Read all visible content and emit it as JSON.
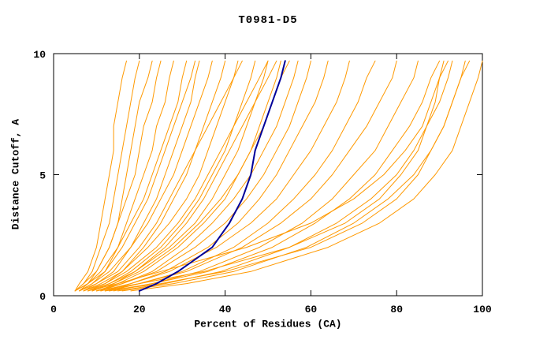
{
  "chart_data": {
    "type": "line",
    "title": "T0981-D5",
    "xlabel": "Percent of Residues (CA)",
    "ylabel": "Distance Cutoff, A",
    "xlim": [
      0,
      100
    ],
    "ylim": [
      0,
      10
    ],
    "xticks": [
      0,
      20,
      40,
      60,
      80,
      100
    ],
    "yticks": [
      0,
      5,
      10
    ],
    "grid": false,
    "legend": "none",
    "colors": {
      "models": "#ff9900",
      "highlight": "#000099",
      "axis": "#000000"
    },
    "y_grid": [
      0.2,
      0.5,
      1,
      2,
      3,
      4,
      5,
      6,
      7,
      8,
      9,
      9.7
    ],
    "series": [
      {
        "x": [
          5,
          6,
          8,
          10,
          11,
          12,
          13,
          14,
          14,
          15,
          16,
          17
        ]
      },
      {
        "x": [
          5,
          7,
          9,
          11,
          13,
          14,
          15,
          16,
          17,
          18,
          19,
          20
        ]
      },
      {
        "x": [
          6,
          8,
          10,
          13,
          15,
          16,
          17,
          18,
          19,
          20,
          22,
          23
        ]
      },
      {
        "x": [
          5,
          7,
          10,
          13,
          15,
          17,
          19,
          20,
          21,
          23,
          24,
          25
        ]
      },
      {
        "x": [
          6,
          9,
          12,
          15,
          17,
          19,
          21,
          23,
          24,
          26,
          27,
          28
        ]
      },
      {
        "x": [
          5,
          8,
          11,
          15,
          18,
          21,
          23,
          25,
          27,
          29,
          30,
          31
        ]
      },
      {
        "x": [
          7,
          10,
          14,
          18,
          21,
          24,
          26,
          28,
          30,
          32,
          33,
          34
        ]
      },
      {
        "x": [
          6,
          9,
          13,
          18,
          22,
          25,
          28,
          30,
          32,
          34,
          36,
          37
        ]
      },
      {
        "x": [
          8,
          12,
          16,
          21,
          25,
          28,
          31,
          33,
          35,
          37,
          39,
          40
        ]
      },
      {
        "x": [
          7,
          11,
          16,
          22,
          27,
          31,
          34,
          36,
          38,
          40,
          42,
          43
        ]
      },
      {
        "x": [
          9,
          13,
          18,
          25,
          30,
          34,
          37,
          40,
          42,
          44,
          46,
          47
        ]
      },
      {
        "x": [
          8,
          13,
          19,
          27,
          33,
          37,
          40,
          43,
          45,
          47,
          49,
          50
        ]
      },
      {
        "x": [
          10,
          15,
          21,
          29,
          35,
          40,
          43,
          46,
          48,
          50,
          52,
          53
        ]
      },
      {
        "x": [
          9,
          14,
          20,
          28,
          34,
          39,
          43,
          46,
          49,
          51,
          53,
          55
        ]
      },
      {
        "x": [
          11,
          16,
          23,
          31,
          37,
          42,
          46,
          49,
          52,
          54,
          56,
          57
        ]
      },
      {
        "x": [
          10,
          16,
          24,
          33,
          40,
          45,
          49,
          52,
          55,
          57,
          59,
          60
        ]
      },
      {
        "x": [
          12,
          18,
          26,
          36,
          43,
          48,
          52,
          55,
          58,
          61,
          63,
          64
        ]
      },
      {
        "x": [
          11,
          18,
          27,
          38,
          46,
          52,
          56,
          60,
          63,
          66,
          68,
          69
        ]
      },
      {
        "x": [
          13,
          20,
          30,
          42,
          50,
          56,
          61,
          65,
          68,
          71,
          73,
          75
        ]
      },
      {
        "x": [
          12,
          20,
          31,
          44,
          53,
          60,
          65,
          69,
          73,
          76,
          79,
          80
        ]
      },
      {
        "x": [
          14,
          23,
          34,
          48,
          58,
          65,
          70,
          75,
          78,
          81,
          84,
          85
        ]
      },
      {
        "x": [
          13,
          23,
          36,
          51,
          61,
          69,
          75,
          79,
          83,
          86,
          88,
          90
        ]
      },
      {
        "x": [
          15,
          26,
          39,
          55,
          66,
          74,
          80,
          84,
          87,
          90,
          92,
          93
        ]
      },
      {
        "x": [
          16,
          28,
          42,
          59,
          70,
          78,
          84,
          88,
          91,
          93,
          95,
          96
        ]
      },
      {
        "x": [
          18,
          31,
          46,
          64,
          76,
          84,
          89,
          93,
          95,
          97,
          99,
          100
        ]
      },
      {
        "x": [
          10,
          20,
          35,
          55,
          68,
          76,
          81,
          85,
          87,
          89,
          90,
          91
        ]
      },
      {
        "x": [
          8,
          15,
          25,
          45,
          60,
          70,
          77,
          82,
          86,
          88,
          90,
          92
        ]
      },
      {
        "x": [
          6,
          10,
          15,
          20,
          24,
          27,
          30,
          33,
          36,
          39,
          42,
          44
        ]
      },
      {
        "x": [
          7,
          12,
          17,
          24,
          29,
          33,
          36,
          39,
          42,
          45,
          48,
          50
        ]
      },
      {
        "x": [
          5,
          8,
          12,
          16,
          19,
          22,
          24,
          26,
          28,
          30,
          32,
          33
        ]
      },
      {
        "x": [
          9,
          14,
          19,
          26,
          31,
          35,
          38,
          41,
          44,
          47,
          50,
          52
        ]
      },
      {
        "x": [
          12,
          25,
          40,
          60,
          72,
          80,
          85,
          88,
          91,
          93,
          95,
          97
        ]
      }
    ],
    "highlight_series": {
      "name": "selected-model",
      "x": [
        20,
        24,
        29,
        37,
        41,
        44,
        46,
        47,
        49,
        51,
        53,
        54
      ]
    }
  }
}
